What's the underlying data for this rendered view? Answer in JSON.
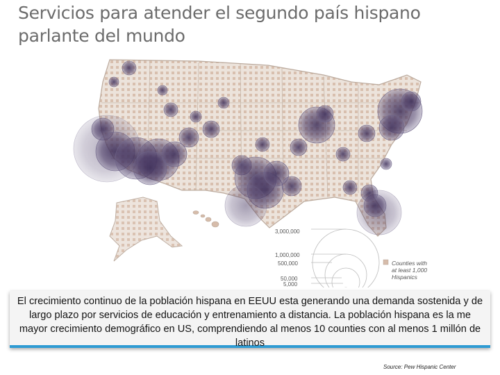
{
  "title": "Servicios para atender el segundo país hispano parlante del mundo",
  "map": {
    "legend": {
      "sizes": [
        "3,000,000",
        "1,000,000",
        "500,000",
        "50,000",
        "5,000"
      ],
      "swatch_label": [
        "Counties with",
        "at least 1,000",
        "Hispanics"
      ]
    },
    "colors": {
      "bubble": "#4a3a66",
      "county_fill": "#d9c4b4",
      "state_line": "#b8a698"
    }
  },
  "caption": "El crecimiento continuo de la población hispana en EEUU esta generando una demanda sostenida y de largo plazo por servicios de educación y entrenamiento a distancia. La población hispana es la me mayor crecimiento demográfico en US, comprendiendo al menos 10 counties con al menos 1 millón de latinos",
  "source": "Source: Pew Hispanic Center"
}
